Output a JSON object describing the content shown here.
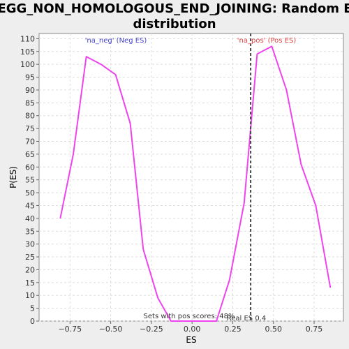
{
  "chart_data": {
    "type": "line",
    "title_lines": [
      "KEGG_NON_HOMOLOGOUS_END_JOINING: Random ES",
      "distribution"
    ],
    "xlabel": "ES",
    "ylabel": "P(ES)",
    "xlim": [
      -0.94,
      0.93
    ],
    "ylim": [
      0,
      112
    ],
    "x_ticks": [
      -0.75,
      -0.5,
      -0.25,
      0.0,
      0.25,
      0.5,
      0.75
    ],
    "x_tick_labels": [
      "−0.75",
      "−0.50",
      "−0.25",
      "0.00",
      "0.25",
      "0.50",
      "0.75"
    ],
    "y_ticks": [
      0,
      5,
      10,
      15,
      20,
      25,
      30,
      35,
      40,
      45,
      50,
      55,
      60,
      65,
      70,
      75,
      80,
      85,
      90,
      95,
      100,
      105,
      110
    ],
    "grid": true,
    "series": [
      {
        "color": "#ee44ee",
        "x": [
          -0.81,
          -0.73,
          -0.65,
          -0.56,
          -0.47,
          -0.38,
          -0.3,
          -0.21,
          -0.13,
          0.15,
          0.23,
          0.32,
          0.4,
          0.49,
          0.58,
          0.67,
          0.76,
          0.85
        ],
        "y": [
          40,
          65,
          103,
          100,
          96,
          77,
          28,
          9,
          0,
          0,
          16,
          46,
          104,
          107,
          90,
          61,
          45,
          13
        ]
      }
    ],
    "real_es": 0.36,
    "real_es_label": "Real ES 0.4",
    "neg_label": "'na_neg' (Neg ES)",
    "pos_label": "'na_pos' (Pos ES)",
    "neg_color": "#4444cc",
    "pos_color": "#dd4444",
    "footer_text": "Sets with pos scores: 48%"
  }
}
